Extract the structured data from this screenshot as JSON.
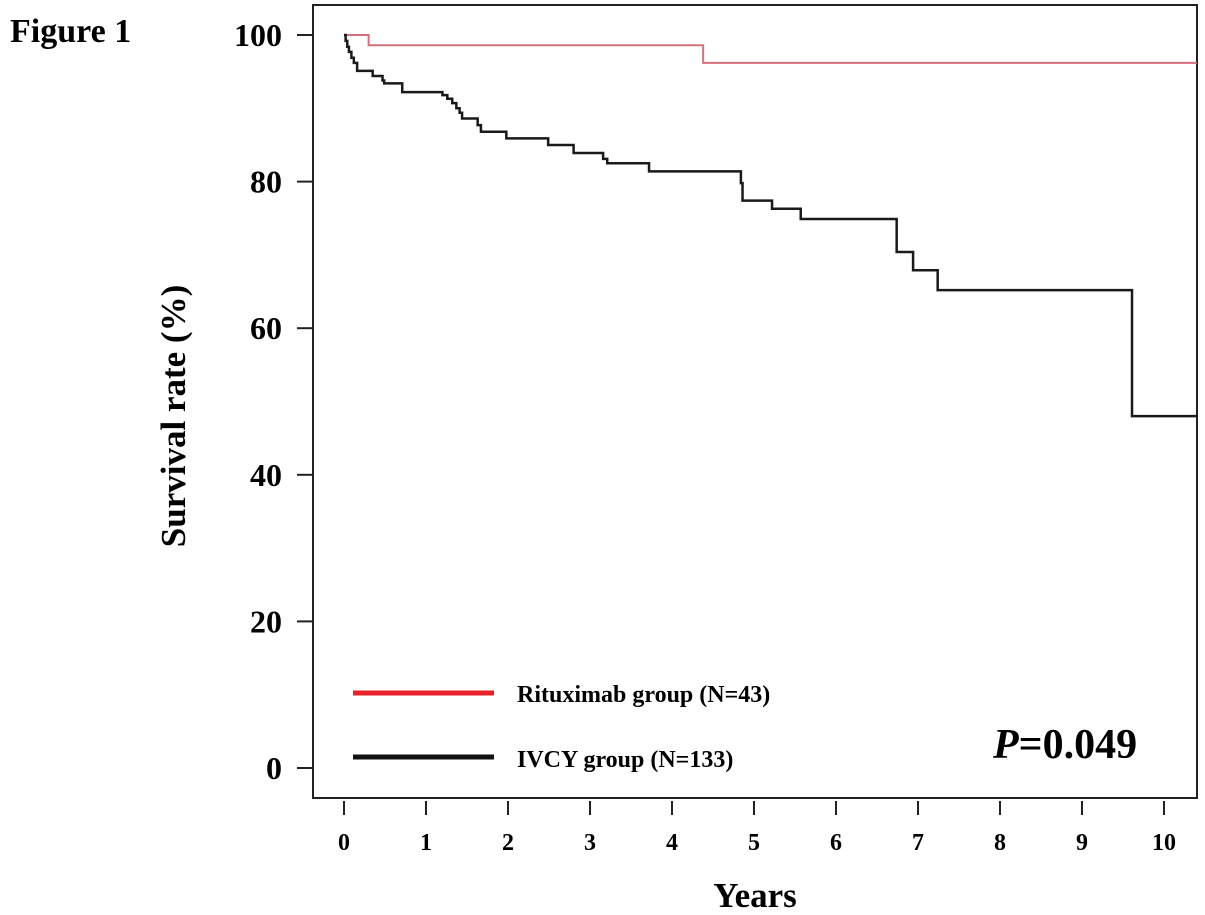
{
  "figure_label": "Figure 1",
  "chart_data": {
    "type": "line",
    "subtype": "kaplan-meier step",
    "title": "",
    "xlabel": "Years",
    "ylabel": "Survival rate (%)",
    "xlim": [
      0,
      10.4
    ],
    "ylim": [
      0,
      100
    ],
    "x_ticks": [
      0,
      1,
      2,
      3,
      4,
      5,
      6,
      7,
      8,
      9,
      10
    ],
    "y_ticks": [
      0,
      20,
      40,
      60,
      80,
      100
    ],
    "grid": false,
    "legend_position": "bottom-left",
    "series": [
      {
        "name": "Rituximab group (N=43)",
        "color": "#e8202a",
        "curve_color": "#d4707e",
        "steps": [
          {
            "x": 0,
            "y": 100
          },
          {
            "x": 0.3,
            "y": 98.6
          },
          {
            "x": 4.38,
            "y": 96.2
          }
        ],
        "end_x": 10.4
      },
      {
        "name": "IVCY group (N=133)",
        "color": "#111111",
        "curve_color": "#1a1a1a",
        "steps": [
          {
            "x": 0,
            "y": 100
          },
          {
            "x": 0.02,
            "y": 99.2
          },
          {
            "x": 0.04,
            "y": 98.4
          },
          {
            "x": 0.06,
            "y": 97.7
          },
          {
            "x": 0.09,
            "y": 96.9
          },
          {
            "x": 0.12,
            "y": 96.2
          },
          {
            "x": 0.16,
            "y": 95.1
          },
          {
            "x": 0.35,
            "y": 94.4
          },
          {
            "x": 0.47,
            "y": 93.8
          },
          {
            "x": 0.49,
            "y": 93.4
          },
          {
            "x": 0.71,
            "y": 92.2
          },
          {
            "x": 1.2,
            "y": 91.8
          },
          {
            "x": 1.26,
            "y": 91.3
          },
          {
            "x": 1.32,
            "y": 90.7
          },
          {
            "x": 1.37,
            "y": 90.0
          },
          {
            "x": 1.41,
            "y": 89.4
          },
          {
            "x": 1.44,
            "y": 88.6
          },
          {
            "x": 1.63,
            "y": 87.7
          },
          {
            "x": 1.67,
            "y": 86.8
          },
          {
            "x": 1.98,
            "y": 85.9
          },
          {
            "x": 2.49,
            "y": 85.0
          },
          {
            "x": 2.8,
            "y": 83.9
          },
          {
            "x": 3.16,
            "y": 83.1
          },
          {
            "x": 3.21,
            "y": 82.5
          },
          {
            "x": 3.72,
            "y": 81.4
          },
          {
            "x": 4.84,
            "y": 79.8
          },
          {
            "x": 4.86,
            "y": 77.4
          },
          {
            "x": 5.22,
            "y": 76.3
          },
          {
            "x": 5.57,
            "y": 74.9
          },
          {
            "x": 6.74,
            "y": 70.4
          },
          {
            "x": 6.94,
            "y": 67.9
          },
          {
            "x": 7.24,
            "y": 65.2
          },
          {
            "x": 9.61,
            "y": 48.0
          }
        ],
        "end_x": 10.4
      }
    ],
    "annotations": [
      {
        "text_italic": "P",
        "text": "=0.049",
        "position": "bottom-right"
      }
    ]
  }
}
